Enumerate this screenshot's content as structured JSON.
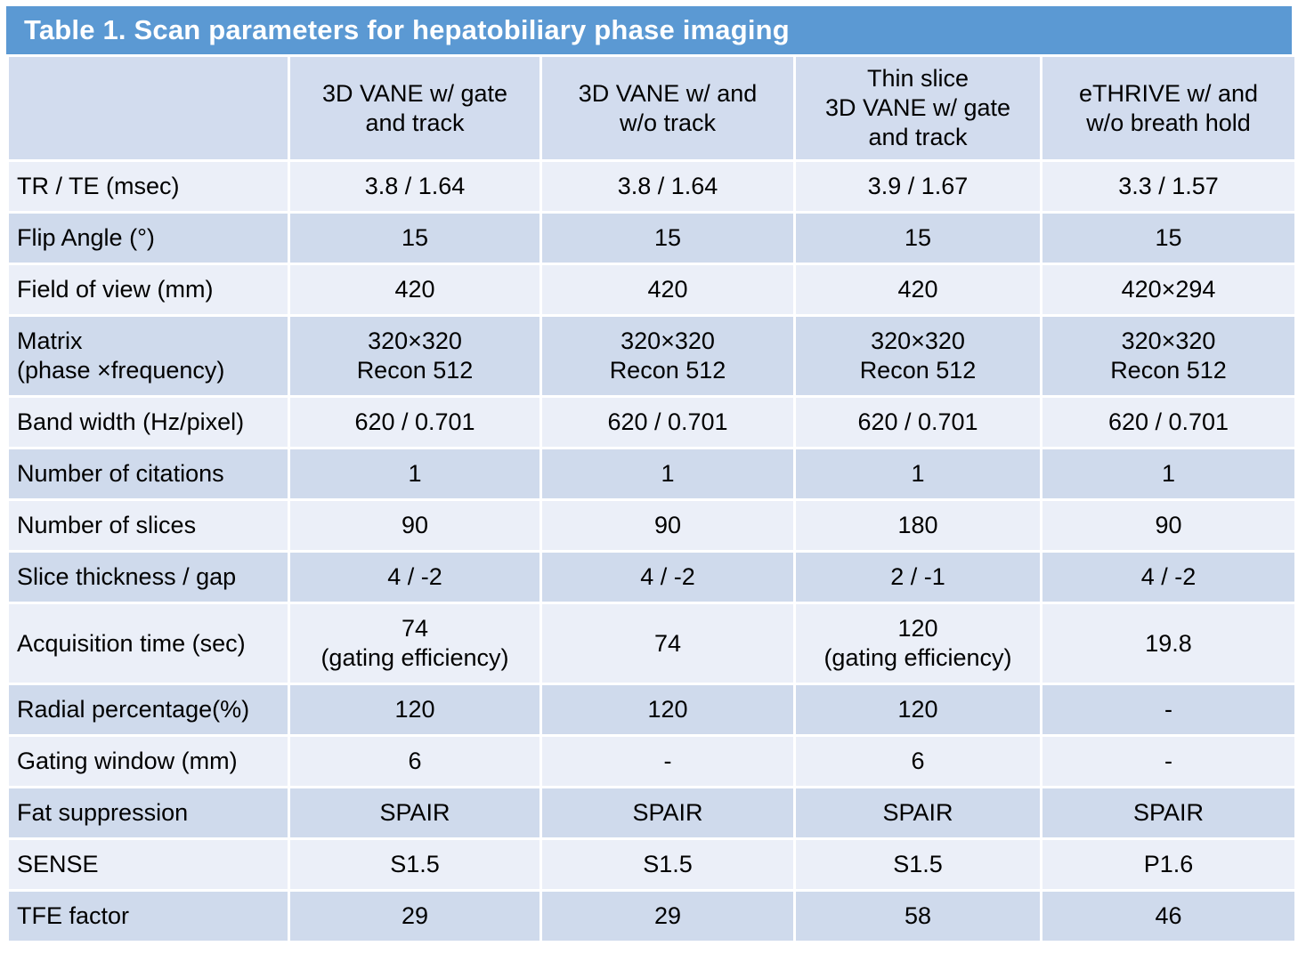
{
  "chart_data": {
    "type": "table",
    "title": "Table 1. Scan parameters for hepatobiliary phase imaging",
    "columns": [
      "",
      "3D VANE w/ gate\nand track",
      "3D VANE w/ and\nw/o track",
      "Thin slice\n3D VANE w/ gate\nand track",
      "eTHRIVE w/ and\nw/o breath hold"
    ],
    "rows": [
      {
        "label": "TR / TE (msec)",
        "values": [
          "3.8 / 1.64",
          "3.8 / 1.64",
          "3.9 / 1.67",
          "3.3 / 1.57"
        ]
      },
      {
        "label": "Flip Angle (°)",
        "values": [
          "15",
          "15",
          "15",
          "15"
        ]
      },
      {
        "label": "Field of view (mm)",
        "values": [
          "420",
          "420",
          "420",
          "420×294"
        ]
      },
      {
        "label": "Matrix\n(phase ×frequency)",
        "values": [
          "320×320\nRecon 512",
          "320×320\nRecon 512",
          "320×320\nRecon 512",
          "320×320\nRecon 512"
        ]
      },
      {
        "label": "Band width (Hz/pixel)",
        "values": [
          "620 / 0.701",
          "620 / 0.701",
          "620 / 0.701",
          "620 / 0.701"
        ]
      },
      {
        "label": "Number of citations",
        "values": [
          "1",
          "1",
          "1",
          "1"
        ]
      },
      {
        "label": "Number of slices",
        "values": [
          "90",
          "90",
          "180",
          "90"
        ]
      },
      {
        "label": "Slice thickness / gap",
        "values": [
          "4 / -2",
          "4 / -2",
          "2 / -1",
          "4 / -2"
        ]
      },
      {
        "label": "Acquisition time (sec)",
        "values": [
          "74\n(gating efficiency)",
          "74",
          "120\n(gating efficiency)",
          "19.8"
        ]
      },
      {
        "label": "Radial percentage(%)",
        "values": [
          "120",
          "120",
          "120",
          "-"
        ]
      },
      {
        "label": "Gating window (mm)",
        "values": [
          "6",
          "-",
          "6",
          "-"
        ]
      },
      {
        "label": "Fat suppression",
        "values": [
          "SPAIR",
          "SPAIR",
          "SPAIR",
          "SPAIR"
        ]
      },
      {
        "label": "SENSE",
        "values": [
          "S1.5",
          "S1.5",
          "S1.5",
          "P1.6"
        ]
      },
      {
        "label": "TFE factor",
        "values": [
          "29",
          "29",
          "58",
          "46"
        ]
      }
    ],
    "layout": {
      "legend": "none",
      "grid_color": "#ffffff",
      "title_fill": "#5b99d3",
      "title_text_color": "#ffffff",
      "header_fill": "#d2dcee",
      "row_fill_light": "#ebeff8",
      "row_fill_dark": "#cfdaec",
      "text_color": "#000000"
    }
  }
}
